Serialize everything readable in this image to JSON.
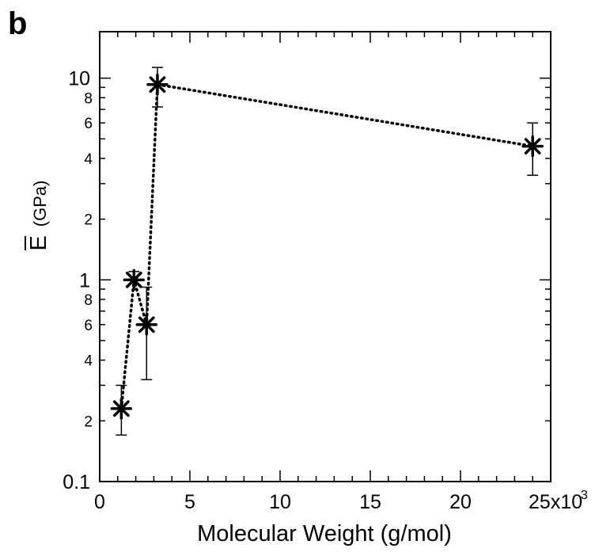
{
  "panel_label": "b",
  "chart_data": {
    "type": "scatter",
    "xlabel": "Molecular Weight (g/mol)",
    "ylabel_symbol": "E",
    "ylabel_unit": "(GPa)",
    "x_multiplier_label": "x10",
    "x_multiplier_exponent": "3",
    "xlim": [
      0,
      25
    ],
    "ylim": [
      0.1,
      17
    ],
    "y_scale": "log",
    "grid": false,
    "x_ticks": [
      0,
      5,
      10,
      15,
      20
    ],
    "x_tick_labels": [
      "0",
      "5",
      "10",
      "15",
      "20"
    ],
    "x_last_tick_label": "25",
    "y_major_ticks": [
      {
        "value": 0.1,
        "label": "0.1"
      },
      {
        "value": 1,
        "label": "1"
      },
      {
        "value": 10,
        "label": "10"
      }
    ],
    "y_minor_ticks": [
      {
        "value": 0.2,
        "label": "2"
      },
      {
        "value": 0.4,
        "label": "4"
      },
      {
        "value": 0.6,
        "label": "6"
      },
      {
        "value": 0.8,
        "label": "8"
      },
      {
        "value": 2,
        "label": "2"
      },
      {
        "value": 4,
        "label": "4"
      },
      {
        "value": 6,
        "label": "6"
      },
      {
        "value": 8,
        "label": "8"
      }
    ],
    "y_unlabeled_minor_ticks": [
      0.3,
      0.5,
      0.7,
      0.9,
      3,
      5,
      7,
      9
    ],
    "series": [
      {
        "x": [
          1.2,
          1.9,
          2.6,
          3.2,
          24.0
        ],
        "y": [
          0.23,
          1.0,
          0.6,
          9.3,
          4.6
        ],
        "y_err_low": [
          0.17,
          1.0,
          0.32,
          7.2,
          3.3
        ],
        "y_err_high": [
          0.3,
          1.1,
          0.92,
          11.3,
          6.0
        ],
        "marker": "asterisk",
        "line": "dotted",
        "color": "#000000"
      }
    ]
  }
}
